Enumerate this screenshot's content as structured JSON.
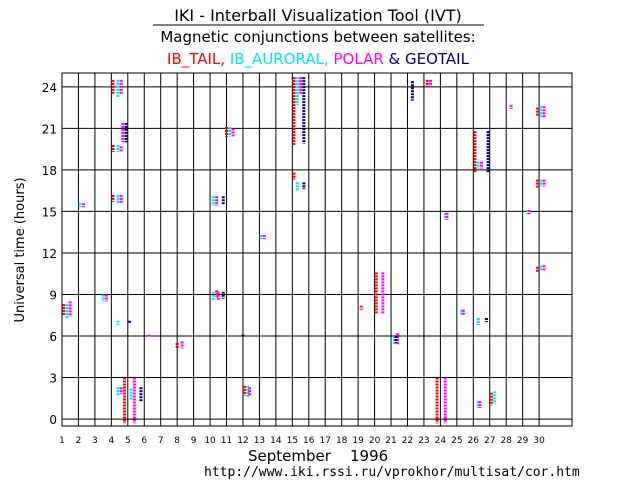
{
  "chart_data": {
    "type": "scatter",
    "title": "IKI - Interball Visualization Tool (IVT)",
    "subtitle": "Magnetic conjunctions between satellites:",
    "legend": [
      {
        "label": "IB_TAIL,",
        "color": "#ff0000"
      },
      {
        "label": "IB_AURORAL,",
        "color": "#00e5ee"
      },
      {
        "label": "POLAR",
        "color": "#ff00ff"
      },
      {
        "label": "& GEOTAIL",
        "color": "#000080"
      }
    ],
    "ylabel": "Universal time (hours)",
    "xlabel": "September    1996",
    "footer_url": "http://www.iki.rssi.ru/vprokhor/multisat/cor.htm",
    "xlim": [
      1,
      32
    ],
    "ylim": [
      -0.5,
      25
    ],
    "x_ticks": [
      1,
      2,
      3,
      4,
      5,
      6,
      7,
      8,
      9,
      10,
      11,
      12,
      13,
      14,
      15,
      16,
      17,
      18,
      19,
      20,
      21,
      22,
      23,
      24,
      25,
      26,
      27,
      28,
      29,
      30
    ],
    "y_ticks": [
      0,
      3,
      6,
      9,
      12,
      15,
      18,
      21,
      24
    ],
    "grid": true,
    "colors": {
      "tail": "#ff0000",
      "auroral": "#00e5ee",
      "polar": "#ff00ff",
      "geotail": "#000080"
    },
    "series": [
      {
        "key": "tail",
        "name": "IB_TAIL",
        "intervals": [
          [
            1.1,
            7.5,
            8.3
          ],
          [
            4.1,
            15.7,
            16.2
          ],
          [
            4.1,
            23.5,
            24.5
          ],
          [
            4.1,
            19.3,
            19.8
          ],
          [
            4.8,
            -0.3,
            3.0
          ],
          [
            8.0,
            5.1,
            5.5
          ],
          [
            10.4,
            8.8,
            9.3
          ],
          [
            11.0,
            20.4,
            21.1
          ],
          [
            12.1,
            1.7,
            2.4
          ],
          [
            15.1,
            19.8,
            24.7
          ],
          [
            15.1,
            17.3,
            17.8
          ],
          [
            20.1,
            7.6,
            10.6
          ],
          [
            23.2,
            24.0,
            24.5
          ],
          [
            23.8,
            -0.3,
            3.0
          ],
          [
            26.1,
            17.8,
            20.8
          ],
          [
            27.1,
            1.0,
            1.9
          ],
          [
            29.9,
            21.9,
            22.5
          ],
          [
            29.9,
            16.7,
            17.3
          ],
          [
            29.9,
            10.6,
            11.0
          ]
        ]
      },
      {
        "key": "auroral",
        "name": "IB_AURORAL",
        "intervals": [
          [
            1.3,
            7.3,
            8.3
          ],
          [
            2.1,
            15.3,
            15.6
          ],
          [
            3.5,
            8.5,
            9.0
          ],
          [
            4.4,
            6.8,
            7.1
          ],
          [
            4.4,
            23.2,
            24.5
          ],
          [
            4.4,
            15.6,
            16.2
          ],
          [
            4.4,
            1.7,
            2.3
          ],
          [
            4.4,
            19.3,
            19.8
          ],
          [
            5.2,
            1.4,
            2.2
          ],
          [
            10.2,
            15.4,
            16.1
          ],
          [
            10.2,
            8.6,
            9.2
          ],
          [
            11.2,
            20.4,
            21.1
          ],
          [
            12.3,
            1.6,
            2.4
          ],
          [
            13.1,
            13.0,
            13.3
          ],
          [
            15.3,
            22.7,
            24.7
          ],
          [
            15.3,
            16.5,
            17.1
          ],
          [
            21.2,
            5.4,
            6.0
          ],
          [
            24.3,
            14.4,
            14.9
          ],
          [
            25.3,
            7.5,
            7.9
          ],
          [
            26.3,
            6.8,
            7.3
          ],
          [
            26.3,
            18.1,
            18.6
          ],
          [
            26.3,
            0.8,
            1.3
          ],
          [
            27.3,
            1.1,
            2.0
          ],
          [
            29.3,
            14.8,
            15.1
          ],
          [
            30.1,
            21.8,
            22.6
          ],
          [
            30.1,
            16.8,
            17.3
          ],
          [
            30.1,
            10.7,
            11.1
          ]
        ]
      },
      {
        "key": "polar",
        "name": "POLAR",
        "intervals": [
          [
            1.5,
            7.4,
            8.5
          ],
          [
            2.3,
            15.3,
            15.6
          ],
          [
            3.7,
            8.5,
            9.0
          ],
          [
            4.6,
            15.6,
            16.2
          ],
          [
            4.6,
            23.5,
            24.5
          ],
          [
            4.6,
            19.3,
            19.7
          ],
          [
            4.6,
            1.8,
            2.3
          ],
          [
            4.7,
            20.0,
            21.4
          ],
          [
            5.4,
            -0.3,
            3.0
          ],
          [
            6.3,
            5.9,
            6.1
          ],
          [
            8.3,
            5.1,
            5.6
          ],
          [
            10.4,
            15.4,
            16.1
          ],
          [
            10.5,
            8.6,
            9.2
          ],
          [
            11.4,
            20.4,
            21.0
          ],
          [
            12.4,
            1.7,
            2.3
          ],
          [
            13.3,
            13.0,
            13.3
          ],
          [
            15.5,
            23.5,
            24.7
          ],
          [
            19.2,
            7.9,
            8.2
          ],
          [
            20.5,
            7.6,
            10.6
          ],
          [
            21.4,
            5.4,
            6.2
          ],
          [
            23.4,
            24.0,
            24.5
          ],
          [
            24.3,
            -0.3,
            3.0
          ],
          [
            24.4,
            14.4,
            14.9
          ],
          [
            25.4,
            7.5,
            7.9
          ],
          [
            26.5,
            18.1,
            18.6
          ],
          [
            26.4,
            0.8,
            1.3
          ],
          [
            28.3,
            22.4,
            22.7
          ],
          [
            29.4,
            14.8,
            15.1
          ],
          [
            30.3,
            21.8,
            22.6
          ],
          [
            30.3,
            16.8,
            17.3
          ],
          [
            30.3,
            10.7,
            11.1
          ]
        ]
      },
      {
        "key": "geotail",
        "name": "GEOTAIL",
        "intervals": [
          [
            4.9,
            20.0,
            21.4
          ],
          [
            5.1,
            6.9,
            7.1
          ],
          [
            5.8,
            1.3,
            2.3
          ],
          [
            10.8,
            15.5,
            16.1
          ],
          [
            10.8,
            8.7,
            9.2
          ],
          [
            12.0,
            5.9,
            6.1
          ],
          [
            15.7,
            19.9,
            24.7
          ],
          [
            15.7,
            16.6,
            17.1
          ],
          [
            21.3,
            5.5,
            6.0
          ],
          [
            22.3,
            23.0,
            24.4
          ],
          [
            26.8,
            7.0,
            7.3
          ],
          [
            26.9,
            17.8,
            20.8
          ]
        ]
      }
    ]
  }
}
